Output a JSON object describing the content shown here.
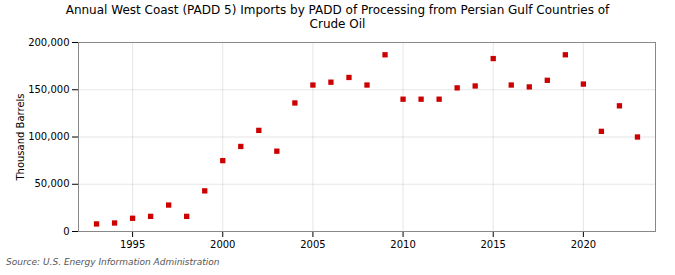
{
  "chart_data": {
    "type": "scatter",
    "title": "Annual West Coast (PADD 5) Imports by PADD of Processing from Persian Gulf Countries of\nCrude Oil",
    "ylabel": "Thousand Barrels",
    "source": "Source: U.S. Energy Information Administration",
    "x": [
      1993,
      1994,
      1995,
      1996,
      1997,
      1998,
      1999,
      2000,
      2001,
      2002,
      2003,
      2004,
      2005,
      2006,
      2007,
      2008,
      2009,
      2010,
      2011,
      2012,
      2013,
      2014,
      2015,
      2016,
      2017,
      2018,
      2019,
      2020,
      2021,
      2022,
      2023
    ],
    "values": [
      8000,
      9000,
      14000,
      16000,
      28000,
      16000,
      43000,
      75000,
      90000,
      107000,
      85000,
      136000,
      155000,
      158000,
      163000,
      155000,
      187000,
      140000,
      140000,
      140000,
      152000,
      154000,
      183000,
      155000,
      153000,
      160000,
      187000,
      156000,
      106000,
      133000,
      100000
    ],
    "color": "#cc0000",
    "marker": "square",
    "xlim": [
      1992,
      2024
    ],
    "xticks": [
      1995,
      2000,
      2005,
      2010,
      2015,
      2020
    ],
    "ylim": [
      0,
      200000
    ],
    "yticks": [
      0,
      {
        "value": 50000,
        "label": "50,000"
      },
      {
        "value": 100000,
        "label": "100,000"
      },
      {
        "value": 150000,
        "label": "150,000"
      },
      {
        "value": 200000,
        "label": "200,000"
      }
    ],
    "grid": true
  }
}
